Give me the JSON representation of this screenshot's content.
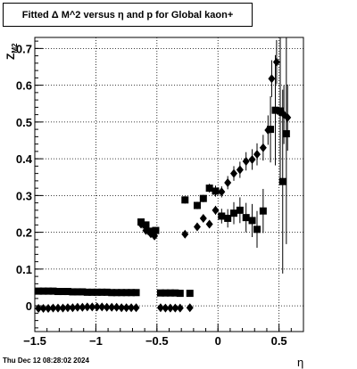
{
  "title": "Fitted Δ M^2 versus η and p for Global kaon+",
  "timestamp": "Thu Dec 12 08:28:02 2024",
  "chart_data": {
    "type": "scatter",
    "title": "Fitted Δ M^2 versus η and p for Global kaon+",
    "xlabel": "η",
    "ylabel": "Z_{M2}",
    "xlim": [
      -1.5,
      0.7
    ],
    "ylim": [
      -0.07,
      0.73
    ],
    "x_ticks": [
      {
        "value": -1.5,
        "label": "−1.5"
      },
      {
        "value": -1,
        "label": "−1"
      },
      {
        "value": -0.5,
        "label": "−0.5"
      },
      {
        "value": 0,
        "label": "0"
      },
      {
        "value": 0.5,
        "label": "0.5"
      }
    ],
    "y_ticks": [
      {
        "value": 0,
        "label": "0"
      },
      {
        "value": 0.1,
        "label": "0.1"
      },
      {
        "value": 0.2,
        "label": "0.2"
      },
      {
        "value": 0.3,
        "label": "0.3"
      },
      {
        "value": 0.4,
        "label": "0.4"
      },
      {
        "value": 0.5,
        "label": "0.5"
      },
      {
        "value": 0.6,
        "label": "0.6"
      },
      {
        "value": 0.7,
        "label": "0.7"
      }
    ],
    "grid": true,
    "series": [
      {
        "marker": "square",
        "color": "#000000",
        "points": [
          {
            "x": -1.47,
            "y": 0.04,
            "err": 0
          },
          {
            "x": -1.43,
            "y": 0.04,
            "err": 0
          },
          {
            "x": -1.39,
            "y": 0.04,
            "err": 0
          },
          {
            "x": -1.35,
            "y": 0.04,
            "err": 0
          },
          {
            "x": -1.31,
            "y": 0.039,
            "err": 0
          },
          {
            "x": -1.27,
            "y": 0.039,
            "err": 0
          },
          {
            "x": -1.23,
            "y": 0.039,
            "err": 0
          },
          {
            "x": -1.19,
            "y": 0.038,
            "err": 0
          },
          {
            "x": -1.15,
            "y": 0.038,
            "err": 0
          },
          {
            "x": -1.11,
            "y": 0.038,
            "err": 0
          },
          {
            "x": -1.07,
            "y": 0.037,
            "err": 0
          },
          {
            "x": -1.03,
            "y": 0.037,
            "err": 0
          },
          {
            "x": -0.99,
            "y": 0.037,
            "err": 0
          },
          {
            "x": -0.95,
            "y": 0.037,
            "err": 0
          },
          {
            "x": -0.91,
            "y": 0.037,
            "err": 0
          },
          {
            "x": -0.87,
            "y": 0.036,
            "err": 0
          },
          {
            "x": -0.83,
            "y": 0.036,
            "err": 0
          },
          {
            "x": -0.79,
            "y": 0.036,
            "err": 0
          },
          {
            "x": -0.75,
            "y": 0.036,
            "err": 0
          },
          {
            "x": -0.71,
            "y": 0.036,
            "err": 0
          },
          {
            "x": -0.67,
            "y": 0.036,
            "err": 0
          },
          {
            "x": -0.63,
            "y": 0.228,
            "err": 0
          },
          {
            "x": -0.59,
            "y": 0.22,
            "err": 0
          },
          {
            "x": -0.55,
            "y": 0.203,
            "err": 0
          },
          {
            "x": -0.53,
            "y": 0.198,
            "err": 0
          },
          {
            "x": -0.51,
            "y": 0.205,
            "err": 0
          },
          {
            "x": -0.47,
            "y": 0.035,
            "err": 0
          },
          {
            "x": -0.43,
            "y": 0.035,
            "err": 0
          },
          {
            "x": -0.39,
            "y": 0.035,
            "err": 0
          },
          {
            "x": -0.35,
            "y": 0.035,
            "err": 0
          },
          {
            "x": -0.31,
            "y": 0.034,
            "err": 0
          },
          {
            "x": -0.27,
            "y": 0.288,
            "err": 0.01
          },
          {
            "x": -0.23,
            "y": 0.034,
            "err": 0
          },
          {
            "x": -0.17,
            "y": 0.273,
            "err": 0.01
          },
          {
            "x": -0.12,
            "y": 0.292,
            "err": 0.01
          },
          {
            "x": -0.07,
            "y": 0.32,
            "err": 0.012
          },
          {
            "x": -0.02,
            "y": 0.312,
            "err": 0.015
          },
          {
            "x": 0.03,
            "y": 0.244,
            "err": 0.02
          },
          {
            "x": 0.08,
            "y": 0.238,
            "err": 0.025
          },
          {
            "x": 0.13,
            "y": 0.252,
            "err": 0.03
          },
          {
            "x": 0.18,
            "y": 0.26,
            "err": 0.035
          },
          {
            "x": 0.23,
            "y": 0.24,
            "err": 0.04
          },
          {
            "x": 0.28,
            "y": 0.232,
            "err": 0.045
          },
          {
            "x": 0.32,
            "y": 0.208,
            "err": 0.05
          },
          {
            "x": 0.37,
            "y": 0.258,
            "err": 0.06
          },
          {
            "x": 0.43,
            "y": 0.48,
            "err": 0.09
          },
          {
            "x": 0.47,
            "y": 0.532,
            "err": 0.15
          },
          {
            "x": 0.51,
            "y": 0.53,
            "err": 0.2
          },
          {
            "x": 0.53,
            "y": 0.338,
            "err": 0.25
          },
          {
            "x": 0.56,
            "y": 0.468,
            "err": 0.3
          }
        ]
      },
      {
        "marker": "diamond",
        "color": "#000000",
        "points": [
          {
            "x": -1.47,
            "y": -0.007,
            "err": 0
          },
          {
            "x": -1.43,
            "y": -0.007,
            "err": 0
          },
          {
            "x": -1.39,
            "y": -0.007,
            "err": 0
          },
          {
            "x": -1.35,
            "y": -0.006,
            "err": 0
          },
          {
            "x": -1.31,
            "y": -0.006,
            "err": 0
          },
          {
            "x": -1.27,
            "y": -0.006,
            "err": 0
          },
          {
            "x": -1.23,
            "y": -0.005,
            "err": 0
          },
          {
            "x": -1.19,
            "y": -0.005,
            "err": 0
          },
          {
            "x": -1.15,
            "y": -0.004,
            "err": 0
          },
          {
            "x": -1.11,
            "y": -0.004,
            "err": 0
          },
          {
            "x": -1.07,
            "y": -0.003,
            "err": 0
          },
          {
            "x": -1.03,
            "y": -0.003,
            "err": 0
          },
          {
            "x": -0.99,
            "y": -0.003,
            "err": 0
          },
          {
            "x": -0.95,
            "y": -0.003,
            "err": 0
          },
          {
            "x": -0.91,
            "y": -0.004,
            "err": 0
          },
          {
            "x": -0.87,
            "y": -0.004,
            "err": 0
          },
          {
            "x": -0.83,
            "y": -0.004,
            "err": 0
          },
          {
            "x": -0.79,
            "y": -0.005,
            "err": 0
          },
          {
            "x": -0.75,
            "y": -0.005,
            "err": 0
          },
          {
            "x": -0.71,
            "y": -0.005,
            "err": 0
          },
          {
            "x": -0.67,
            "y": -0.005,
            "err": 0
          },
          {
            "x": -0.63,
            "y": 0.222,
            "err": 0
          },
          {
            "x": -0.59,
            "y": 0.205,
            "err": 0
          },
          {
            "x": -0.55,
            "y": 0.196,
            "err": 0
          },
          {
            "x": -0.52,
            "y": 0.19,
            "err": 0
          },
          {
            "x": -0.47,
            "y": -0.005,
            "err": 0
          },
          {
            "x": -0.43,
            "y": -0.006,
            "err": 0
          },
          {
            "x": -0.39,
            "y": -0.006,
            "err": 0
          },
          {
            "x": -0.35,
            "y": -0.006,
            "err": 0
          },
          {
            "x": -0.31,
            "y": -0.006,
            "err": 0
          },
          {
            "x": -0.27,
            "y": 0.195,
            "err": 0
          },
          {
            "x": -0.23,
            "y": -0.005,
            "err": 0
          },
          {
            "x": -0.17,
            "y": 0.215,
            "err": 0.005
          },
          {
            "x": -0.12,
            "y": 0.238,
            "err": 0.008
          },
          {
            "x": -0.07,
            "y": 0.222,
            "err": 0.01
          },
          {
            "x": -0.02,
            "y": 0.26,
            "err": 0.012
          },
          {
            "x": 0.03,
            "y": 0.31,
            "err": 0.015
          },
          {
            "x": 0.08,
            "y": 0.335,
            "err": 0.018
          },
          {
            "x": 0.13,
            "y": 0.36,
            "err": 0.02
          },
          {
            "x": 0.18,
            "y": 0.37,
            "err": 0.022
          },
          {
            "x": 0.23,
            "y": 0.393,
            "err": 0.025
          },
          {
            "x": 0.28,
            "y": 0.398,
            "err": 0.028
          },
          {
            "x": 0.32,
            "y": 0.412,
            "err": 0.03
          },
          {
            "x": 0.37,
            "y": 0.43,
            "err": 0.035
          },
          {
            "x": 0.41,
            "y": 0.478,
            "err": 0.04
          },
          {
            "x": 0.44,
            "y": 0.618,
            "err": 0.05
          },
          {
            "x": 0.48,
            "y": 0.663,
            "err": 0.06
          },
          {
            "x": 0.51,
            "y": 0.526,
            "err": 0.07
          },
          {
            "x": 0.54,
            "y": 0.52,
            "err": 0.08
          },
          {
            "x": 0.57,
            "y": 0.512,
            "err": 0.09
          }
        ]
      }
    ]
  }
}
